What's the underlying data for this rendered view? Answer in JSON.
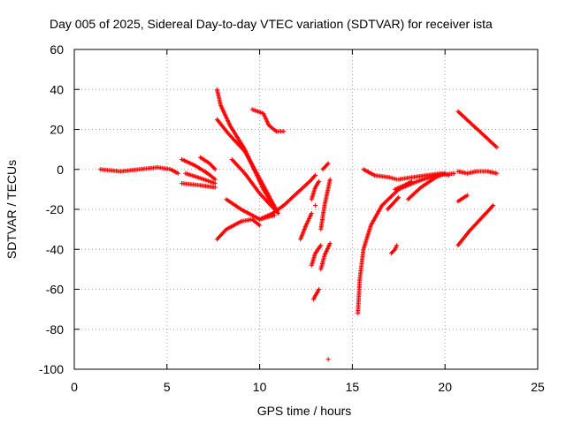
{
  "chart_data": {
    "type": "scatter",
    "title": "Day 005 of 2025, Sidereal Day-to-day VTEC variation (SDTVAR) for receiver ista",
    "xlabel": "GPS time / hours",
    "ylabel": "SDTVAR / TECUs",
    "xlim": [
      0,
      25
    ],
    "ylim": [
      -100,
      60
    ],
    "xticks": [
      "0",
      "5",
      "10",
      "15",
      "20",
      "25"
    ],
    "yticks": [
      "-100",
      "-80",
      "-60",
      "-40",
      "-20",
      "0",
      "20",
      "40",
      "60"
    ],
    "grid": true,
    "marker": "+",
    "color": "#ff0000",
    "series": [
      {
        "x": [
          1.4,
          2.5,
          3.5,
          4.5,
          5.2,
          5.6
        ],
        "y": [
          0,
          -1,
          0,
          1,
          0,
          -2
        ]
      },
      {
        "x": [
          5.8,
          6.5,
          7.2,
          7.6
        ],
        "y": [
          5,
          2,
          -2,
          -5
        ]
      },
      {
        "x": [
          5.8,
          6.8,
          7.6
        ],
        "y": [
          -7,
          -8,
          -9
        ]
      },
      {
        "x": [
          6.0,
          7.0,
          7.6
        ],
        "y": [
          -2,
          -5,
          -7
        ]
      },
      {
        "x": [
          6.8,
          7.3,
          7.6
        ],
        "y": [
          6,
          3,
          0
        ]
      },
      {
        "x": [
          7.7,
          7.9,
          8.4,
          9.2,
          10.2,
          11.0
        ],
        "y": [
          40,
          32,
          22,
          10,
          -10,
          -22
        ]
      },
      {
        "x": [
          7.7,
          8.3,
          9.2,
          10.2,
          11.0
        ],
        "y": [
          25,
          18,
          9,
          -8,
          -22
        ]
      },
      {
        "x": [
          8.5,
          9.2,
          10.0,
          10.8
        ],
        "y": [
          5,
          -2,
          -12,
          -20
        ]
      },
      {
        "x": [
          8.2,
          9.0,
          10.0,
          10.8
        ],
        "y": [
          -15,
          -20,
          -25,
          -23
        ]
      },
      {
        "x": [
          7.7,
          8.2,
          9.0,
          9.6,
          10.0
        ],
        "y": [
          -35,
          -30,
          -26,
          -25,
          -28
        ]
      },
      {
        "x": [
          9.6,
          10.2,
          10.5,
          10.9,
          11.3
        ],
        "y": [
          30,
          28,
          22,
          19,
          19
        ]
      },
      {
        "x": [
          10.0,
          10.7,
          11.3,
          12.0,
          12.7,
          13.0
        ],
        "y": [
          -25,
          -22,
          -18,
          -12,
          -6,
          -3
        ]
      },
      {
        "x": [
          12.8,
          13.0,
          13.2
        ],
        "y": [
          -15,
          -9,
          -6
        ]
      },
      {
        "x": [
          12.2,
          12.5,
          12.8
        ],
        "y": [
          -35,
          -28,
          -22
        ]
      },
      {
        "x": [
          12.9,
          13.2
        ],
        "y": [
          -65,
          -60
        ]
      },
      {
        "x": [
          12.8,
          13.0,
          13.3
        ],
        "y": [
          -48,
          -42,
          -38
        ]
      },
      {
        "x": [
          13.3,
          13.5,
          13.8
        ],
        "y": [
          -50,
          -43,
          -37
        ]
      },
      {
        "x": [
          13.3,
          13.5,
          13.8
        ],
        "y": [
          -30,
          -18,
          -5
        ]
      },
      {
        "x": [
          13.4,
          13.7
        ],
        "y": [
          0,
          3
        ]
      },
      {
        "x": [
          13.7
        ],
        "y": [
          -95
        ]
      },
      {
        "x": [
          13.0
        ],
        "y": [
          -18
        ]
      },
      {
        "x": [
          15.3,
          15.4,
          15.6,
          16.0,
          16.6,
          17.5,
          18.5,
          19.5,
          20.5
        ],
        "y": [
          -72,
          -55,
          -40,
          -28,
          -18,
          -10,
          -6,
          -3,
          -2
        ]
      },
      {
        "x": [
          15.6,
          16.2,
          17.0,
          17.4
        ],
        "y": [
          0,
          -3,
          -4,
          -5
        ]
      },
      {
        "x": [
          17.1,
          17.3,
          17.4
        ],
        "y": [
          -42,
          -40,
          -38
        ]
      },
      {
        "x": [
          17.5,
          18.2,
          19.0,
          19.8,
          20.2
        ],
        "y": [
          -5,
          -4,
          -3,
          -2,
          -3
        ]
      },
      {
        "x": [
          17.3,
          17.8,
          18.2
        ],
        "y": [
          -10,
          -8,
          -6
        ]
      },
      {
        "x": [
          16.9,
          17.2,
          17.5
        ],
        "y": [
          -20,
          -17,
          -14
        ]
      },
      {
        "x": [
          18.0,
          18.7,
          19.5,
          20.0
        ],
        "y": [
          -15,
          -9,
          -4,
          -2
        ]
      },
      {
        "x": [
          20.7,
          21.4,
          22.1,
          22.8
        ],
        "y": [
          29,
          23,
          17,
          11
        ]
      },
      {
        "x": [
          20.7,
          21.2,
          21.7,
          22.3,
          22.8
        ],
        "y": [
          -1,
          -2,
          -1,
          -1,
          -2
        ]
      },
      {
        "x": [
          20.7,
          21.2
        ],
        "y": [
          -16,
          -13
        ]
      },
      {
        "x": [
          20.7,
          21.3,
          22.0,
          22.6
        ],
        "y": [
          -38,
          -31,
          -24,
          -18
        ]
      }
    ]
  }
}
